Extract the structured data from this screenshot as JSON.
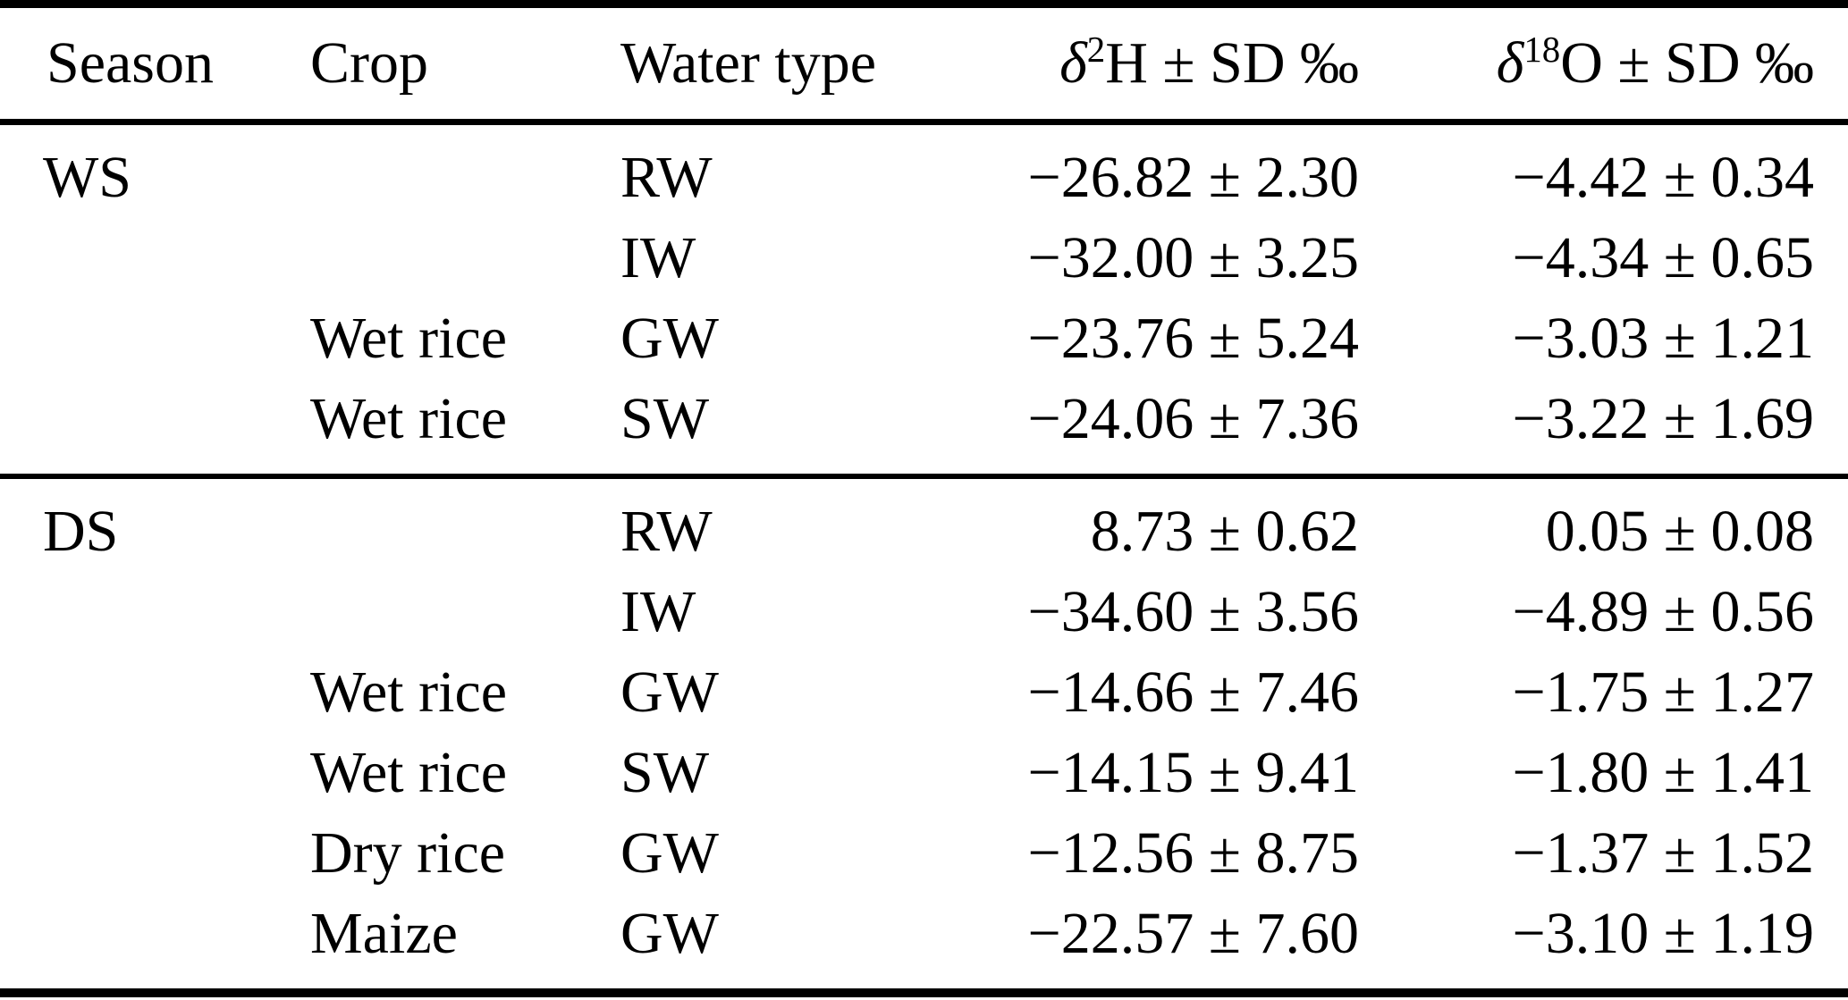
{
  "table": {
    "headers": {
      "season": "Season",
      "crop": "Crop",
      "water_type": "Water type",
      "d2h": {
        "delta": "δ",
        "sup": "2",
        "rest": "H ± SD ‰"
      },
      "d18o": {
        "delta": "δ",
        "sup": "18",
        "rest": "O ± SD ‰"
      }
    },
    "sections": [
      {
        "rows": [
          {
            "season": "WS",
            "crop": "",
            "water": "RW",
            "d2h": "−26.82 ± 2.30",
            "d18o": "−4.42 ± 0.34"
          },
          {
            "season": "",
            "crop": "",
            "water": "IW",
            "d2h": "−32.00 ± 3.25",
            "d18o": "−4.34 ± 0.65"
          },
          {
            "season": "",
            "crop": "Wet rice",
            "water": "GW",
            "d2h": "−23.76 ± 5.24",
            "d18o": "−3.03 ± 1.21"
          },
          {
            "season": "",
            "crop": "Wet rice",
            "water": "SW",
            "d2h": "−24.06 ± 7.36",
            "d18o": "−3.22 ± 1.69"
          }
        ]
      },
      {
        "rows": [
          {
            "season": "DS",
            "crop": "",
            "water": "RW",
            "d2h": "8.73 ± 0.62",
            "d18o": "0.05 ± 0.08"
          },
          {
            "season": "",
            "crop": "",
            "water": "IW",
            "d2h": "−34.60 ± 3.56",
            "d18o": "−4.89 ± 0.56"
          },
          {
            "season": "",
            "crop": "Wet rice",
            "water": "GW",
            "d2h": "−14.66 ± 7.46",
            "d18o": "−1.75 ± 1.27"
          },
          {
            "season": "",
            "crop": "Wet rice",
            "water": "SW",
            "d2h": "−14.15 ± 9.41",
            "d18o": "−1.80 ± 1.41"
          },
          {
            "season": "",
            "crop": "Dry rice",
            "water": "GW",
            "d2h": "−12.56 ± 8.75",
            "d18o": "−1.37 ± 1.52"
          },
          {
            "season": "",
            "crop": "Maize",
            "water": "GW",
            "d2h": "−22.57 ± 7.60",
            "d18o": "−3.10 ± 1.19"
          }
        ]
      }
    ],
    "colors": {
      "text": "#000000",
      "rule": "#000000",
      "background": "#ffffff"
    }
  },
  "chart_data": {
    "type": "table",
    "columns": [
      "Season",
      "Crop",
      "Water type",
      "δ2H ± SD ‰",
      "δ18O ± SD ‰"
    ],
    "rows": [
      [
        "WS",
        "",
        "RW",
        "−26.82 ± 2.30",
        "−4.42 ± 0.34"
      ],
      [
        "",
        "",
        "IW",
        "−32.00 ± 3.25",
        "−4.34 ± 0.65"
      ],
      [
        "",
        "Wet rice",
        "GW",
        "−23.76 ± 5.24",
        "−3.03 ± 1.21"
      ],
      [
        "",
        "Wet rice",
        "SW",
        "−24.06 ± 7.36",
        "−3.22 ± 1.69"
      ],
      [
        "DS",
        "",
        "RW",
        "8.73 ± 0.62",
        "0.05 ± 0.08"
      ],
      [
        "",
        "",
        "IW",
        "−34.60 ± 3.56",
        "−4.89 ± 0.56"
      ],
      [
        "",
        "Wet rice",
        "GW",
        "−14.66 ± 7.46",
        "−1.75 ± 1.27"
      ],
      [
        "",
        "Wet rice",
        "SW",
        "−14.15 ± 9.41",
        "−1.80 ± 1.41"
      ],
      [
        "",
        "Dry rice",
        "GW",
        "−12.56 ± 8.75",
        "−1.37 ± 1.52"
      ],
      [
        "",
        "Maize",
        "GW",
        "−22.57 ± 7.60",
        "−3.10 ± 1.19"
      ]
    ]
  }
}
